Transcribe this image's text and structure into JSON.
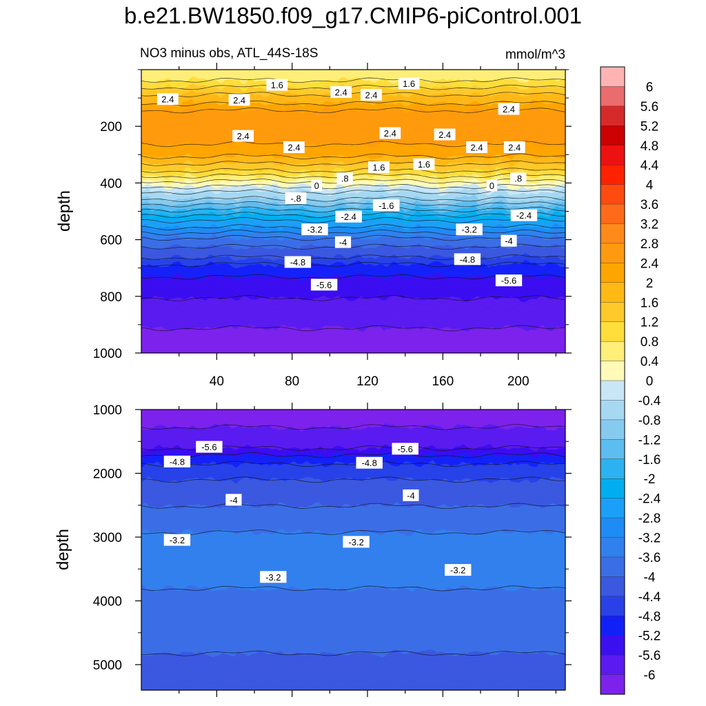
{
  "title": "b.e21.BW1850.f09_g17.CMIP6-piControl.001",
  "chart_data": [
    {
      "type": "heatmap",
      "panel": "upper",
      "left_subtitle": "NO3 minus obs, ATL_44S-18S",
      "right_subtitle": "mmol/m^3",
      "ylabel": "depth",
      "y_reversed": true,
      "xlim": [
        0,
        225
      ],
      "ylim": [
        0,
        1000
      ],
      "x_ticks": [
        40,
        80,
        120,
        160,
        200
      ],
      "y_ticks": [
        200,
        400,
        600,
        800,
        1000
      ],
      "depth_profile": [
        {
          "depth": 20,
          "value": 0.6
        },
        {
          "depth": 60,
          "value": 1.2
        },
        {
          "depth": 100,
          "value": 1.8
        },
        {
          "depth": 140,
          "value": 2.4
        },
        {
          "depth": 200,
          "value": 2.6
        },
        {
          "depth": 260,
          "value": 2.4
        },
        {
          "depth": 300,
          "value": 2.0
        },
        {
          "depth": 340,
          "value": 1.4
        },
        {
          "depth": 370,
          "value": 0.8
        },
        {
          "depth": 400,
          "value": 0.2
        },
        {
          "depth": 430,
          "value": -0.4
        },
        {
          "depth": 460,
          "value": -1.0
        },
        {
          "depth": 500,
          "value": -1.8
        },
        {
          "depth": 540,
          "value": -2.6
        },
        {
          "depth": 580,
          "value": -3.4
        },
        {
          "depth": 620,
          "value": -4.0
        },
        {
          "depth": 660,
          "value": -4.4
        },
        {
          "depth": 700,
          "value": -5.0
        },
        {
          "depth": 760,
          "value": -5.4
        },
        {
          "depth": 840,
          "value": -5.8
        },
        {
          "depth": 940,
          "value": -6.1
        }
      ],
      "contour_labels": [
        {
          "x": 14,
          "depth": 105,
          "text": "2.4"
        },
        {
          "x": 52,
          "depth": 108,
          "text": "2.4"
        },
        {
          "x": 72,
          "depth": 55,
          "text": "1.6"
        },
        {
          "x": 106,
          "depth": 80,
          "text": "2.4"
        },
        {
          "x": 122,
          "depth": 90,
          "text": "2.4"
        },
        {
          "x": 142,
          "depth": 50,
          "text": "1.6"
        },
        {
          "x": 195,
          "depth": 140,
          "text": "2.4"
        },
        {
          "x": 54,
          "depth": 235,
          "text": "2.4"
        },
        {
          "x": 81,
          "depth": 275,
          "text": "2.4"
        },
        {
          "x": 132,
          "depth": 225,
          "text": "2.4"
        },
        {
          "x": 161,
          "depth": 230,
          "text": "2.4"
        },
        {
          "x": 178,
          "depth": 275,
          "text": "2.4"
        },
        {
          "x": 198,
          "depth": 275,
          "text": "2.4"
        },
        {
          "x": 126,
          "depth": 345,
          "text": "1.6"
        },
        {
          "x": 150,
          "depth": 335,
          "text": "1.6"
        },
        {
          "x": 93,
          "depth": 410,
          "text": "0"
        },
        {
          "x": 108,
          "depth": 385,
          "text": ".8"
        },
        {
          "x": 186,
          "depth": 410,
          "text": "0"
        },
        {
          "x": 200,
          "depth": 385,
          "text": ".8"
        },
        {
          "x": 82,
          "depth": 455,
          "text": "-.8"
        },
        {
          "x": 130,
          "depth": 480,
          "text": "-1.6"
        },
        {
          "x": 110,
          "depth": 520,
          "text": "-2.4"
        },
        {
          "x": 203,
          "depth": 515,
          "text": "-2.4"
        },
        {
          "x": 92,
          "depth": 565,
          "text": "-3.2"
        },
        {
          "x": 174,
          "depth": 565,
          "text": "-3.2"
        },
        {
          "x": 107,
          "depth": 610,
          "text": "-4"
        },
        {
          "x": 195,
          "depth": 605,
          "text": "-4"
        },
        {
          "x": 83,
          "depth": 680,
          "text": "-4.8"
        },
        {
          "x": 173,
          "depth": 670,
          "text": "-4.8"
        },
        {
          "x": 97,
          "depth": 760,
          "text": "-5.6"
        },
        {
          "x": 195,
          "depth": 745,
          "text": "-5.6"
        }
      ]
    },
    {
      "type": "heatmap",
      "panel": "lower",
      "ylabel": "depth",
      "y_reversed": true,
      "xlim": [
        0,
        225
      ],
      "ylim": [
        1000,
        5400
      ],
      "y_ticks": [
        1000,
        2000,
        3000,
        4000,
        5000
      ],
      "depth_profile": [
        {
          "depth": 1100,
          "value": -6.1
        },
        {
          "depth": 1550,
          "value": -5.8
        },
        {
          "depth": 1750,
          "value": -5.0
        },
        {
          "depth": 2000,
          "value": -4.5
        },
        {
          "depth": 2400,
          "value": -4.1
        },
        {
          "depth": 2800,
          "value": -3.7
        },
        {
          "depth": 3300,
          "value": -3.3
        },
        {
          "depth": 3800,
          "value": -3.6
        },
        {
          "depth": 4400,
          "value": -3.8
        },
        {
          "depth": 5000,
          "value": -4.1
        },
        {
          "depth": 5300,
          "value": -4.3
        }
      ],
      "contour_labels": [
        {
          "x": 36,
          "depth": 1590,
          "text": "-5.6"
        },
        {
          "x": 140,
          "depth": 1620,
          "text": "-5.6"
        },
        {
          "x": 19,
          "depth": 1820,
          "text": "-4.8"
        },
        {
          "x": 121,
          "depth": 1840,
          "text": "-4.8"
        },
        {
          "x": 49,
          "depth": 2420,
          "text": "-4"
        },
        {
          "x": 143,
          "depth": 2350,
          "text": "-4"
        },
        {
          "x": 19,
          "depth": 3050,
          "text": "-3.2"
        },
        {
          "x": 114,
          "depth": 3080,
          "text": "-3.2"
        },
        {
          "x": 70,
          "depth": 3630,
          "text": "-3.2"
        },
        {
          "x": 168,
          "depth": 3520,
          "text": "-3.2"
        }
      ]
    }
  ],
  "colorbar": {
    "labels": [
      "6",
      "5.6",
      "5.2",
      "4.8",
      "4.4",
      "4",
      "3.6",
      "3.2",
      "2.8",
      "2.4",
      "2",
      "1.6",
      "1.2",
      "0.8",
      "0.4",
      "0",
      "-0.4",
      "-0.8",
      "-1.2",
      "-1.6",
      "-2",
      "-2.4",
      "-2.8",
      "-3.2",
      "-3.6",
      "-4",
      "-4.4",
      "-4.8",
      "-5.2",
      "-5.6",
      "-6"
    ],
    "colors": [
      "#ffb3b3",
      "#ea6c6c",
      "#d62a2a",
      "#cc0000",
      "#ee1111",
      "#ff2200",
      "#ff4a10",
      "#ff6a1a",
      "#ff8a1a",
      "#ff9a10",
      "#ffa500",
      "#ffb814",
      "#ffc92a",
      "#ffdd3a",
      "#ffee78",
      "#fffab8",
      "#c8e6f5",
      "#a6d8f2",
      "#86caef",
      "#5cbdf0",
      "#2cb2f0",
      "#00aeef",
      "#1aa0f8",
      "#1e8cf5",
      "#3080ee",
      "#3a6ee6",
      "#3a58e0",
      "#2842e8",
      "#1220f8",
      "#3a10f0",
      "#5a1af0",
      "#7c22ec"
    ]
  }
}
